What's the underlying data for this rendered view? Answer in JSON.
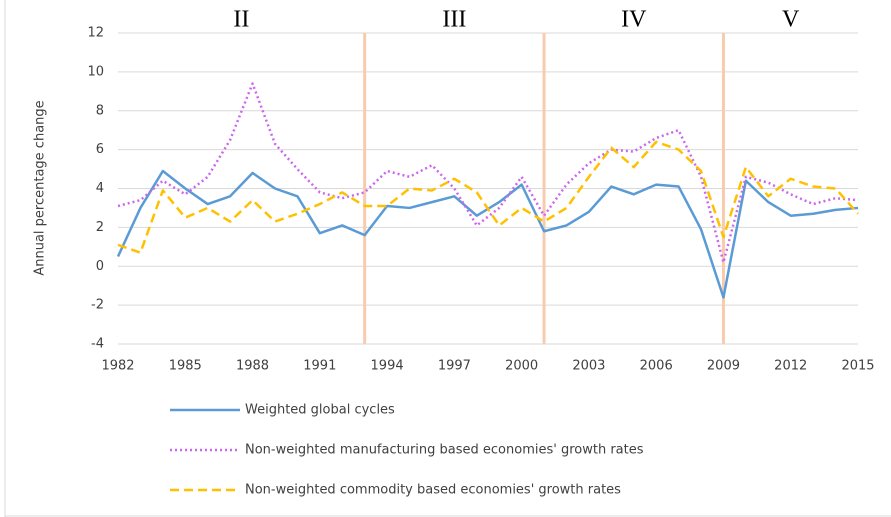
{
  "chart_data": {
    "type": "line",
    "y_label": "Annual percentage change",
    "x": [
      1982,
      1983,
      1984,
      1985,
      1986,
      1987,
      1988,
      1989,
      1990,
      1991,
      1992,
      1993,
      1994,
      1995,
      1996,
      1997,
      1998,
      1999,
      2000,
      2001,
      2002,
      2003,
      2004,
      2005,
      2006,
      2007,
      2008,
      2009,
      2010,
      2011,
      2012,
      2013,
      2014,
      2015
    ],
    "xlim": [
      1982,
      2015
    ],
    "xticks": [
      1982,
      1985,
      1988,
      1991,
      1994,
      1997,
      2000,
      2003,
      2006,
      2009,
      2012,
      2015
    ],
    "ylim": [
      -4,
      12
    ],
    "yticks": [
      -4,
      -2,
      0,
      2,
      4,
      6,
      8,
      10,
      12
    ],
    "grid": true,
    "periods": [
      {
        "label": "II",
        "start": 1982,
        "end": 1993
      },
      {
        "label": "III",
        "start": 1993,
        "end": 2001
      },
      {
        "label": "IV",
        "start": 2001,
        "end": 2009
      },
      {
        "label": "V",
        "start": 2009,
        "end": 2015
      }
    ],
    "period_divider_color": "#f8cbad",
    "series": [
      {
        "name": "Weighted global cycles",
        "color": "#5b9bd5",
        "style": "solid",
        "values": [
          0.5,
          3.0,
          4.9,
          4.0,
          3.2,
          3.6,
          4.8,
          4.0,
          3.6,
          1.7,
          2.1,
          1.6,
          3.1,
          3.0,
          3.3,
          3.6,
          2.6,
          3.3,
          4.2,
          1.8,
          2.1,
          2.8,
          4.1,
          3.7,
          4.2,
          4.1,
          1.9,
          -1.6,
          4.4,
          3.3,
          2.6,
          2.7,
          2.9,
          3.0
        ]
      },
      {
        "name": "Non-weighted manufacturing based economies' growth rates",
        "color": "#cc66ee",
        "style": "dotted",
        "values": [
          3.1,
          3.4,
          4.4,
          3.7,
          4.6,
          6.5,
          9.4,
          6.3,
          5.0,
          3.8,
          3.5,
          3.8,
          4.9,
          4.6,
          5.2,
          4.0,
          2.1,
          3.0,
          4.6,
          2.6,
          4.2,
          5.3,
          6.0,
          5.9,
          6.6,
          7.0,
          4.6,
          0.2,
          4.6,
          4.3,
          3.7,
          3.2,
          3.5,
          3.4
        ]
      },
      {
        "name": "Non-weighted commodity based economies' growth rates",
        "color": "#ffc000",
        "style": "dashed",
        "values": [
          1.1,
          0.7,
          3.9,
          2.5,
          3.0,
          2.3,
          3.4,
          2.3,
          2.7,
          3.2,
          3.8,
          3.1,
          3.1,
          4.0,
          3.9,
          4.5,
          3.8,
          2.1,
          3.0,
          2.3,
          3.0,
          4.6,
          6.1,
          5.1,
          6.4,
          6.0,
          4.9,
          1.5,
          5.1,
          3.6,
          4.5,
          4.1,
          4.0,
          2.7
        ]
      }
    ]
  }
}
